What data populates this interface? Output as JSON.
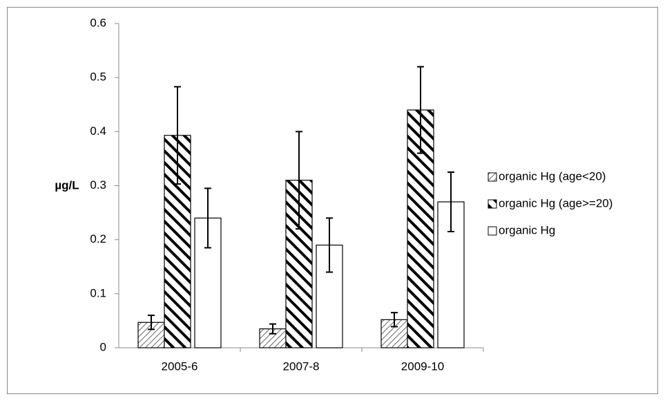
{
  "chart_data": {
    "type": "bar",
    "y_label": "µg/L",
    "categories": [
      "2005-6",
      "2007-8",
      "2009-10"
    ],
    "series": [
      {
        "name": "organic Hg (age<20)",
        "color": "#000000",
        "hatch": "light",
        "values": [
          0.047,
          0.035,
          0.052
        ],
        "errors": [
          0.013,
          0.009,
          0.013
        ]
      },
      {
        "name": "organic Hg (age>=20)",
        "color": "#000000",
        "hatch": "bold",
        "values": [
          0.393,
          0.31,
          0.44
        ],
        "errors": [
          0.09,
          0.09,
          0.08
        ]
      },
      {
        "name": "organic Hg",
        "color": "#000000",
        "hatch": "none",
        "values": [
          0.24,
          0.19,
          0.27
        ],
        "errors": [
          0.055,
          0.05,
          0.055
        ]
      }
    ],
    "ylim": [
      0,
      0.6
    ],
    "yticks": [
      0,
      0.1,
      0.2,
      0.3,
      0.4,
      0.5,
      0.6
    ],
    "grid": false,
    "legend": "right"
  }
}
